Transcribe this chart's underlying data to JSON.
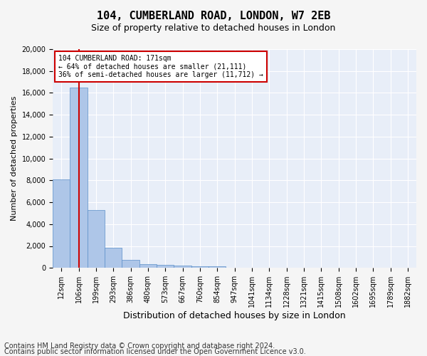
{
  "title": "104, CUMBERLAND ROAD, LONDON, W7 2EB",
  "subtitle": "Size of property relative to detached houses in London",
  "xlabel": "Distribution of detached houses by size in London",
  "ylabel": "Number of detached properties",
  "bin_labels": [
    "12sqm",
    "106sqm",
    "199sqm",
    "293sqm",
    "386sqm",
    "480sqm",
    "573sqm",
    "667sqm",
    "760sqm",
    "854sqm",
    "947sqm",
    "1041sqm",
    "1134sqm",
    "1228sqm",
    "1321sqm",
    "1415sqm",
    "1508sqm",
    "1602sqm",
    "1695sqm",
    "1789sqm",
    "1882sqm"
  ],
  "bar_values": [
    8100,
    16500,
    5300,
    1850,
    700,
    350,
    270,
    200,
    170,
    120,
    0,
    0,
    0,
    0,
    0,
    0,
    0,
    0,
    0,
    0,
    0
  ],
  "bar_color": "#aec6e8",
  "bar_edge_color": "#5b8fc9",
  "property_bin_index": 1,
  "annotation_title": "104 CUMBERLAND ROAD: 171sqm",
  "annotation_line1": "← 64% of detached houses are smaller (21,111)",
  "annotation_line2": "36% of semi-detached houses are larger (11,712) →",
  "annotation_box_color": "#cc0000",
  "vline_color": "#cc0000",
  "ylim": [
    0,
    20000
  ],
  "yticks": [
    0,
    2000,
    4000,
    6000,
    8000,
    10000,
    12000,
    14000,
    16000,
    18000,
    20000
  ],
  "footer_line1": "Contains HM Land Registry data © Crown copyright and database right 2024.",
  "footer_line2": "Contains public sector information licensed under the Open Government Licence v3.0.",
  "plot_bg_color": "#e8eef8",
  "grid_color": "#ffffff",
  "title_fontsize": 11,
  "subtitle_fontsize": 9,
  "xlabel_fontsize": 9,
  "ylabel_fontsize": 8,
  "tick_fontsize": 7,
  "footer_fontsize": 7
}
